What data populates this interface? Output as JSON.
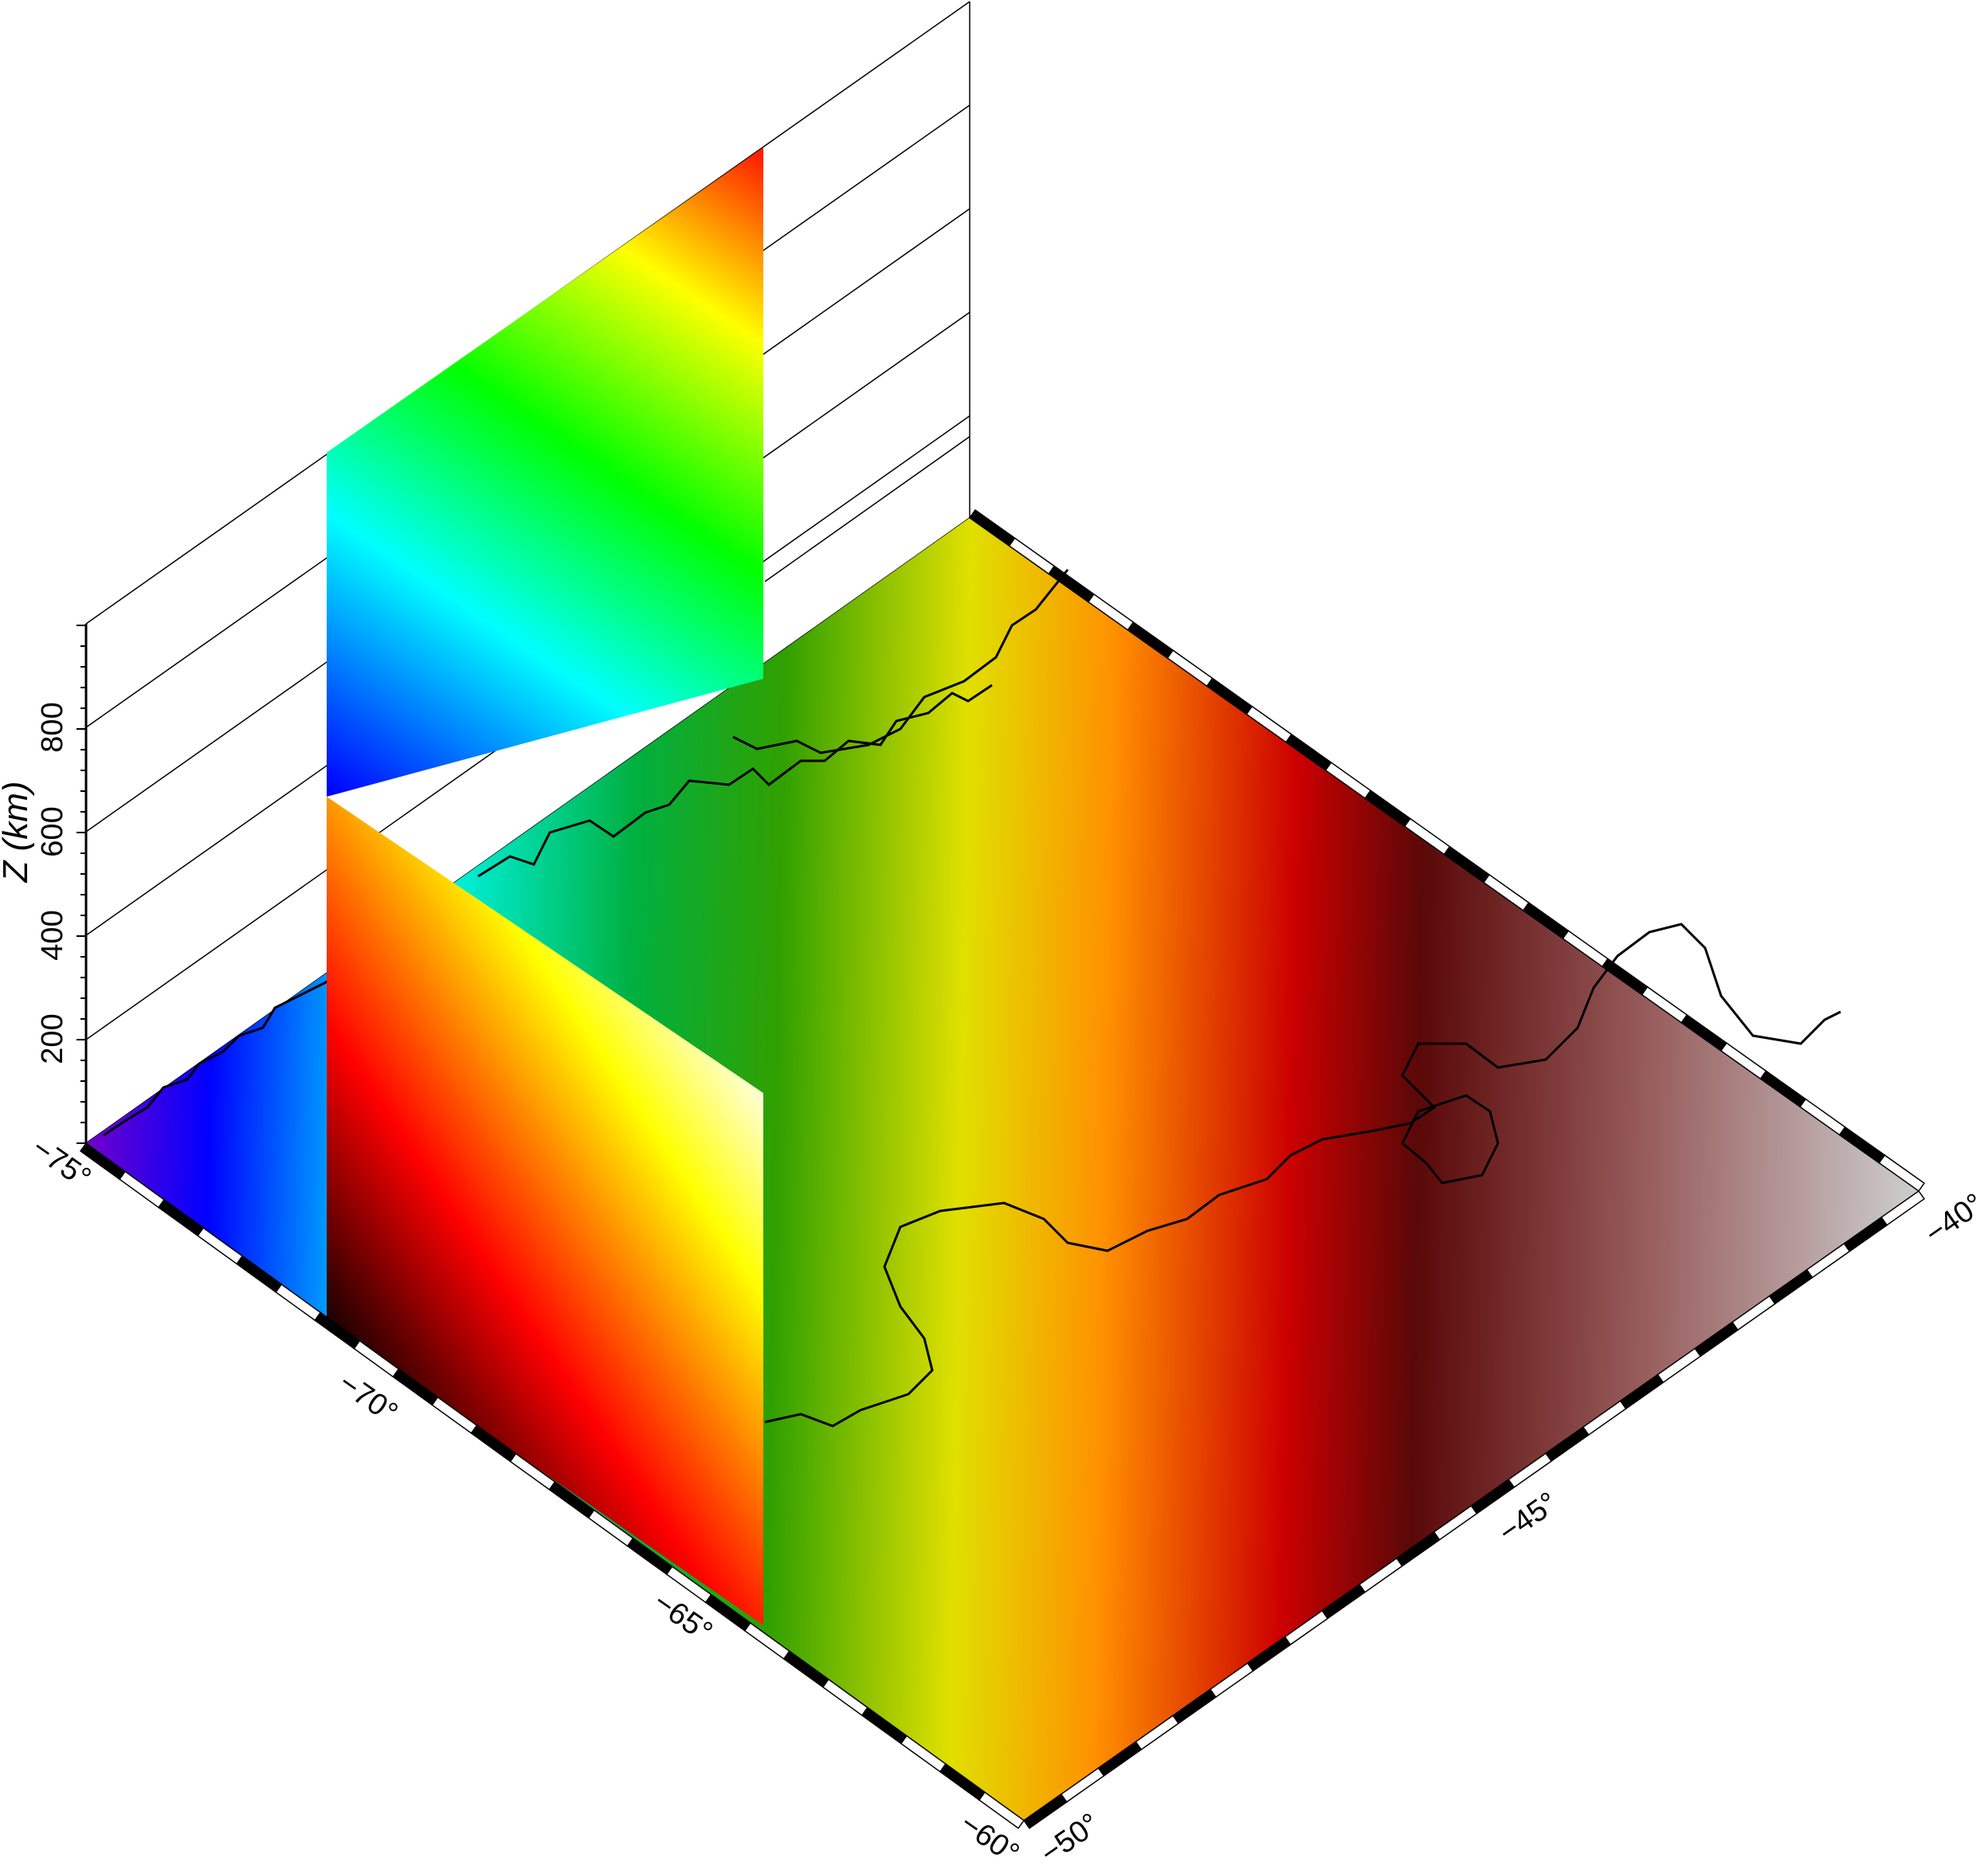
{
  "z_axis": {
    "label": "Z (km)",
    "ticks": [
      "200",
      "400",
      "600",
      "800"
    ]
  },
  "x_axis": {
    "ticks": [
      "−75°",
      "−70°",
      "−65°",
      "−60°"
    ]
  },
  "y_axis": {
    "ticks": [
      "−50°",
      "−45°",
      "−40°"
    ]
  },
  "colors": {
    "map_gradient": [
      "#7a00c8",
      "#0000ff",
      "#00ffff",
      "#00c000",
      "#c8e600",
      "#ffff00",
      "#ff8000",
      "#cc0000",
      "#5a0a0a",
      "#c8c8c8"
    ],
    "upper_panel_gradient": [
      "#0000ff",
      "#00ffff",
      "#00ff00",
      "#ffff00",
      "#ff3000"
    ],
    "lower_panel_gradient": [
      "#000000",
      "#ff0000",
      "#ffff00",
      "#ffffff"
    ],
    "coastline": "#000000",
    "frame_dark": "#000000",
    "frame_light": "#ffffff"
  }
}
